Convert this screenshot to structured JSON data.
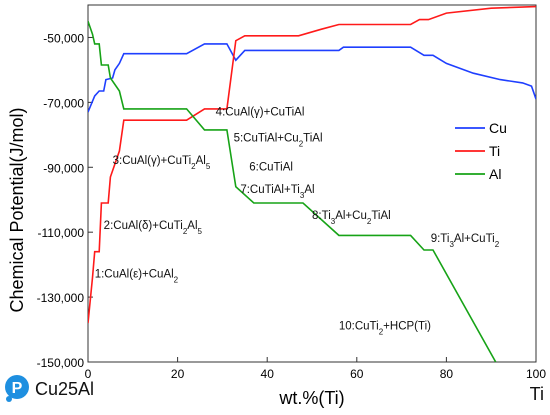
{
  "page": {
    "logo_text": "Cu25Al",
    "bottom_right_label": "Ti"
  },
  "colors": {
    "Cu": "#1f3fff",
    "Ti": "#ff1a1a",
    "Al": "#17a317",
    "logo": "#1e8fe0"
  },
  "chart_data": {
    "type": "line",
    "title": "",
    "xlabel": "wt.%(Ti)",
    "ylabel": "Chemical Potential(J/mol)",
    "xlim": [
      0,
      100
    ],
    "ylim": [
      -150000,
      -40000
    ],
    "xticks": [
      0,
      20,
      40,
      60,
      80,
      100
    ],
    "yticks": [
      -50000,
      -70000,
      -90000,
      -110000,
      -130000,
      -150000
    ],
    "ytick_labels": [
      "-50,000",
      "-70,000",
      "-90,000",
      "-110,000",
      "-130,000",
      "-150,000"
    ],
    "legend_position": "right",
    "series": [
      {
        "name": "Cu",
        "color": "#1f3fff",
        "points": [
          [
            0,
            -73000
          ],
          [
            1.5,
            -68000
          ],
          [
            2.5,
            -66500
          ],
          [
            3.5,
            -66500
          ],
          [
            4,
            -63000
          ],
          [
            5.5,
            -62500
          ],
          [
            6,
            -60000
          ],
          [
            7,
            -58000
          ],
          [
            8,
            -55000
          ],
          [
            22,
            -55000
          ],
          [
            26,
            -52000
          ],
          [
            31,
            -52000
          ],
          [
            33,
            -57000
          ],
          [
            35,
            -54000
          ],
          [
            56,
            -54000
          ],
          [
            57,
            -53000
          ],
          [
            72,
            -53000
          ],
          [
            75,
            -55500
          ],
          [
            77,
            -55500
          ],
          [
            80,
            -58000
          ],
          [
            86,
            -61000
          ],
          [
            92,
            -63000
          ],
          [
            97,
            -64000
          ],
          [
            99,
            -65000
          ],
          [
            100,
            -69000
          ]
        ]
      },
      {
        "name": "Ti",
        "color": "#ff1a1a",
        "points": [
          [
            0,
            -138000
          ],
          [
            1,
            -124000
          ],
          [
            1.5,
            -116000
          ],
          [
            2.5,
            -116000
          ],
          [
            3,
            -101000
          ],
          [
            4.5,
            -101000
          ],
          [
            5,
            -93000
          ],
          [
            7,
            -85000
          ],
          [
            8,
            -75500
          ],
          [
            22,
            -75500
          ],
          [
            26,
            -72000
          ],
          [
            31,
            -72000
          ],
          [
            33,
            -51000
          ],
          [
            35,
            -49500
          ],
          [
            47,
            -49500
          ],
          [
            52,
            -47500
          ],
          [
            56,
            -46000
          ],
          [
            72,
            -46000
          ],
          [
            74,
            -44500
          ],
          [
            76,
            -44500
          ],
          [
            80,
            -42500
          ],
          [
            90,
            -41000
          ],
          [
            100,
            -40500
          ]
        ]
      },
      {
        "name": "Al",
        "color": "#17a317",
        "points": [
          [
            0,
            -45000
          ],
          [
            1,
            -49000
          ],
          [
            1.5,
            -52000
          ],
          [
            2.5,
            -52000
          ],
          [
            3,
            -58500
          ],
          [
            4.5,
            -58500
          ],
          [
            5,
            -62500
          ],
          [
            7,
            -66500
          ],
          [
            8,
            -72000
          ],
          [
            22,
            -72000
          ],
          [
            26,
            -78500
          ],
          [
            31,
            -78500
          ],
          [
            33,
            -96000
          ],
          [
            37,
            -101000
          ],
          [
            48,
            -101000
          ],
          [
            56,
            -111000
          ],
          [
            72,
            -111000
          ],
          [
            75,
            -115500
          ],
          [
            77,
            -115500
          ],
          [
            91,
            -150000
          ]
        ]
      }
    ],
    "annotations": [
      {
        "text": "1:CuAl(ε)+CuAl",
        "sub": "2",
        "after": "",
        "x": 1.5,
        "y": -124000
      },
      {
        "text": "2:CuAl(δ)+CuTi",
        "sub": "2",
        "after": "Al",
        "sub2": "5",
        "x": 3.5,
        "y": -109000
      },
      {
        "text": "3:CuAl(γ)+CuTi",
        "sub": "2",
        "after": "Al",
        "sub2": "5",
        "x": 5.5,
        "y": -89000
      },
      {
        "text": "4:CuAl(γ)+CuTiAl",
        "sub": "",
        "after": "",
        "x": 28.5,
        "y": -74000
      },
      {
        "text": "5:CuTiAl+Cu",
        "sub": "2",
        "after": "TiAl",
        "x": 32.5,
        "y": -82000
      },
      {
        "text": "6:CuTiAl",
        "sub": "",
        "after": "",
        "x": 36,
        "y": -91000
      },
      {
        "text": "7:CuTiAl+Ti",
        "sub": "3",
        "after": "Al",
        "x": 34,
        "y": -98000
      },
      {
        "text": "8:Ti",
        "sub": "3",
        "after": "Al+Cu",
        "sub2": "2",
        "after2": "TiAl",
        "x": 50,
        "y": -106000
      },
      {
        "text": "9:Ti",
        "sub": "3",
        "after": "Al+CuTi",
        "sub2": "2",
        "x": 76.5,
        "y": -113000
      },
      {
        "text": "10:CuTi",
        "sub": "2",
        "after": "+HCP(Ti)",
        "x": 56,
        "y": -140000
      }
    ]
  }
}
